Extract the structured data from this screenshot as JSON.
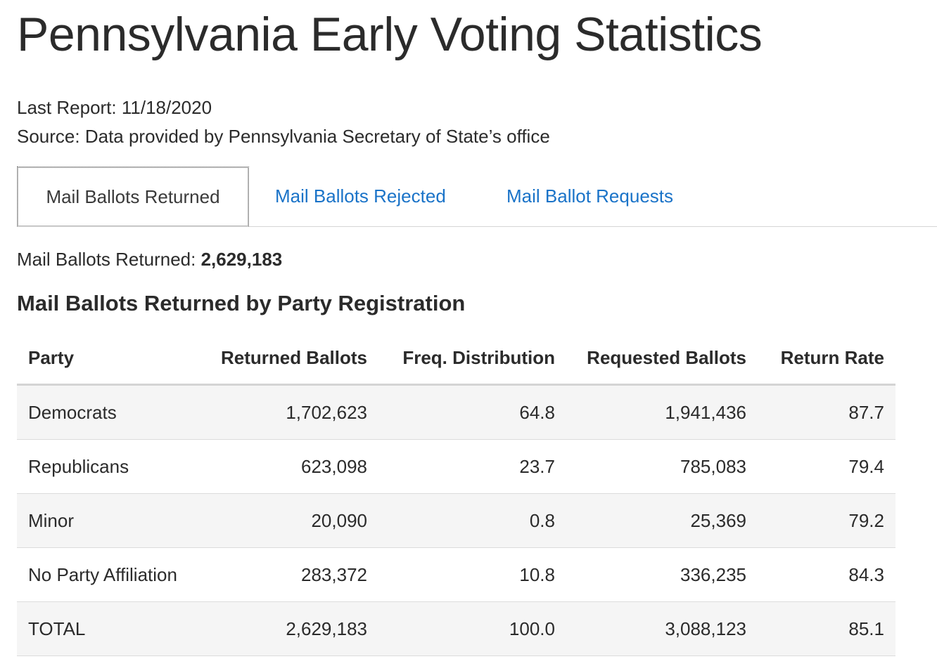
{
  "title": "Pennsylvania Early Voting Statistics",
  "last_report": "Last Report: 11/18/2020",
  "source": "Source: Data provided by Pennsylvania Secretary of State’s office",
  "tabs": [
    {
      "label": "Mail Ballots Returned",
      "active": true
    },
    {
      "label": "Mail Ballots Rejected",
      "active": false
    },
    {
      "label": "Mail Ballot Requests",
      "active": false
    }
  ],
  "summary": {
    "label": "Mail Ballots Returned:",
    "value": "2,629,183"
  },
  "section_title": "Mail Ballots Returned by Party Registration",
  "table": {
    "headers": [
      "Party",
      "Returned Ballots",
      "Freq. Distribution",
      "Requested Ballots",
      "Return Rate"
    ],
    "rows": [
      [
        "Democrats",
        "1,702,623",
        "64.8",
        "1,941,436",
        "87.7"
      ],
      [
        "Republicans",
        "623,098",
        "23.7",
        "785,083",
        "79.4"
      ],
      [
        "Minor",
        "20,090",
        "0.8",
        "25,369",
        "79.2"
      ],
      [
        "No Party Affiliation",
        "283,372",
        "10.8",
        "336,235",
        "84.3"
      ],
      [
        "TOTAL",
        "2,629,183",
        "100.0",
        "3,088,123",
        "85.1"
      ]
    ]
  },
  "colors": {
    "link": "#1a73c8",
    "text": "#2b2b2b",
    "stripe": "#f5f5f5"
  }
}
